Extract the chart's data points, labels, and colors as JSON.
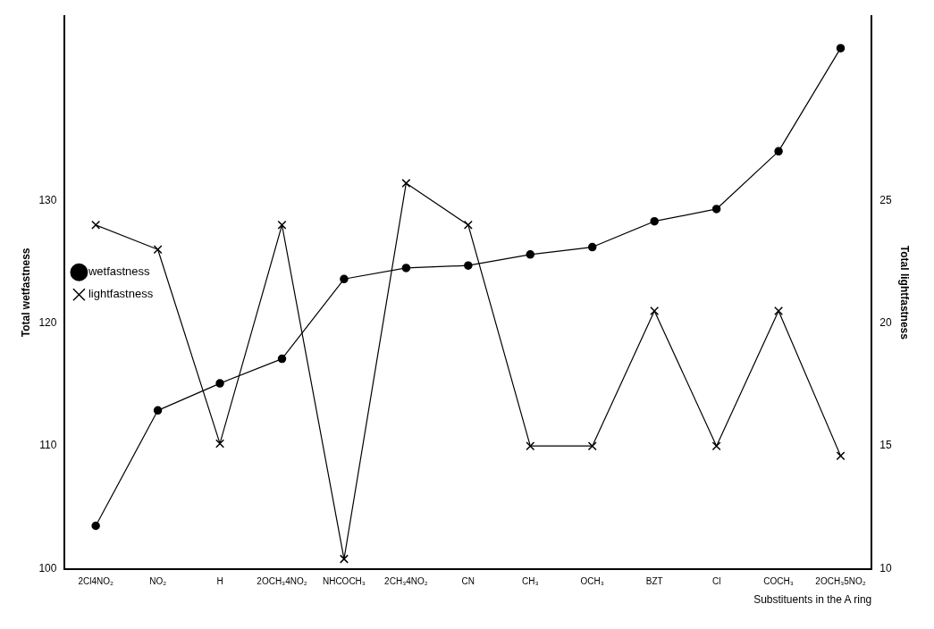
{
  "chart_data": {
    "type": "line",
    "xlabel": "Substituents in the A ring",
    "ylabel": "Total wetfastness",
    "y2label": "Total lightfastness",
    "categories": [
      "2Cl4NO₂",
      "NO₂",
      "H",
      "2OCH₃4NO₂",
      "NHCOCH₃",
      "2CH₃4NO₂",
      "CN",
      "CH₃",
      "OCH₃",
      "BZT",
      "Cl",
      "COCH₃",
      "2OCH₃5NO₂"
    ],
    "series": [
      {
        "name": "wetfastness",
        "color": "#000000",
        "marker": "circle",
        "values": [
          103.5,
          112.9,
          115.1,
          117.1,
          123.6,
          124.5,
          124.7,
          125.6,
          126.2,
          128.3,
          129.3,
          134.0,
          142.4
        ]
      },
      {
        "name": "lightfastness",
        "color": "#000000",
        "marker": "cross",
        "axis": "y2",
        "values": [
          24,
          23,
          15.1,
          24,
          10.4,
          25.7,
          24,
          15,
          15,
          20.5,
          15,
          20.5,
          14.6
        ]
      }
    ],
    "ylim": [
      100,
      145
    ],
    "yticks": [
      100,
      110,
      120,
      130
    ],
    "y2lim": [
      10,
      32.5
    ],
    "y2ticks": [
      10,
      15,
      20,
      25
    ],
    "grid": false,
    "legend": "top",
    "line_style": "solid"
  }
}
